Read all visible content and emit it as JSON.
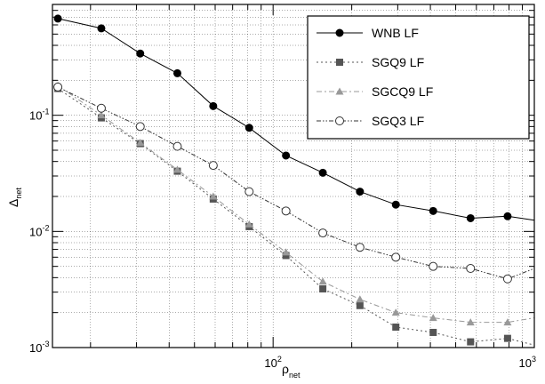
{
  "chart_data": {
    "type": "line",
    "xscale": "log",
    "yscale": "log",
    "xlim": [
      14.3,
      1000
    ],
    "ylim": [
      0.001,
      0.9
    ],
    "grid": true,
    "legend_position": "top-right",
    "xlabel": {
      "main": "ρ",
      "sub": "net"
    },
    "ylabel": {
      "main": "Δ",
      "sub": "net"
    },
    "x_ticks": [
      {
        "value": 100,
        "base": "10",
        "exp": "2"
      },
      {
        "value": 1000,
        "base": "10",
        "exp": "3"
      }
    ],
    "y_ticks": [
      {
        "value": 0.1,
        "base": "10",
        "exp": "-1"
      },
      {
        "value": 0.01,
        "base": "10",
        "exp": "-2"
      },
      {
        "value": 0.001,
        "base": "10",
        "exp": "-3"
      }
    ],
    "series": [
      {
        "name": "WNB LF",
        "marker": "filled-circle",
        "line": "solid",
        "color": "#000000",
        "points": [
          [
            15,
            0.68
          ],
          [
            22,
            0.56
          ],
          [
            31,
            0.34
          ],
          [
            43,
            0.23
          ],
          [
            59,
            0.12
          ],
          [
            81,
            0.078
          ],
          [
            112,
            0.045
          ],
          [
            155,
            0.032
          ],
          [
            215,
            0.022
          ],
          [
            295,
            0.017
          ],
          [
            410,
            0.015
          ],
          [
            570,
            0.013
          ],
          [
            790,
            0.0135
          ],
          [
            1000,
            0.0125
          ]
        ]
      },
      {
        "name": "SGQ9 LF",
        "marker": "filled-square",
        "line": "dotted",
        "color": "#555555",
        "points": [
          [
            15,
            0.17
          ],
          [
            22,
            0.095
          ],
          [
            31,
            0.057
          ],
          [
            43,
            0.033
          ],
          [
            59,
            0.019
          ],
          [
            81,
            0.011
          ],
          [
            112,
            0.0062
          ],
          [
            155,
            0.0032
          ],
          [
            215,
            0.0023
          ],
          [
            295,
            0.0015
          ],
          [
            410,
            0.00135
          ],
          [
            570,
            0.00112
          ],
          [
            790,
            0.0012
          ],
          [
            1000,
            0.00105
          ]
        ]
      },
      {
        "name": "SGCQ9 LF",
        "marker": "filled-triangle",
        "line": "dash-dot",
        "color": "#999999",
        "points": [
          [
            15,
            0.18
          ],
          [
            22,
            0.1
          ],
          [
            31,
            0.058
          ],
          [
            43,
            0.034
          ],
          [
            59,
            0.02
          ],
          [
            81,
            0.0115
          ],
          [
            112,
            0.0066
          ],
          [
            155,
            0.0037
          ],
          [
            215,
            0.0026
          ],
          [
            295,
            0.002
          ],
          [
            410,
            0.0018
          ],
          [
            570,
            0.00165
          ],
          [
            790,
            0.00165
          ],
          [
            1000,
            0.0018
          ]
        ]
      },
      {
        "name": "SGQ3 LF",
        "marker": "open-circle",
        "line": "dash-dot-dot",
        "color": "#333333",
        "points": [
          [
            15,
            0.175
          ],
          [
            22,
            0.115
          ],
          [
            31,
            0.08
          ],
          [
            43,
            0.054
          ],
          [
            59,
            0.037
          ],
          [
            81,
            0.022
          ],
          [
            112,
            0.015
          ],
          [
            155,
            0.0097
          ],
          [
            215,
            0.0073
          ],
          [
            295,
            0.006
          ],
          [
            410,
            0.005
          ],
          [
            570,
            0.0048
          ],
          [
            790,
            0.0039
          ],
          [
            1000,
            0.0048
          ]
        ]
      }
    ]
  }
}
